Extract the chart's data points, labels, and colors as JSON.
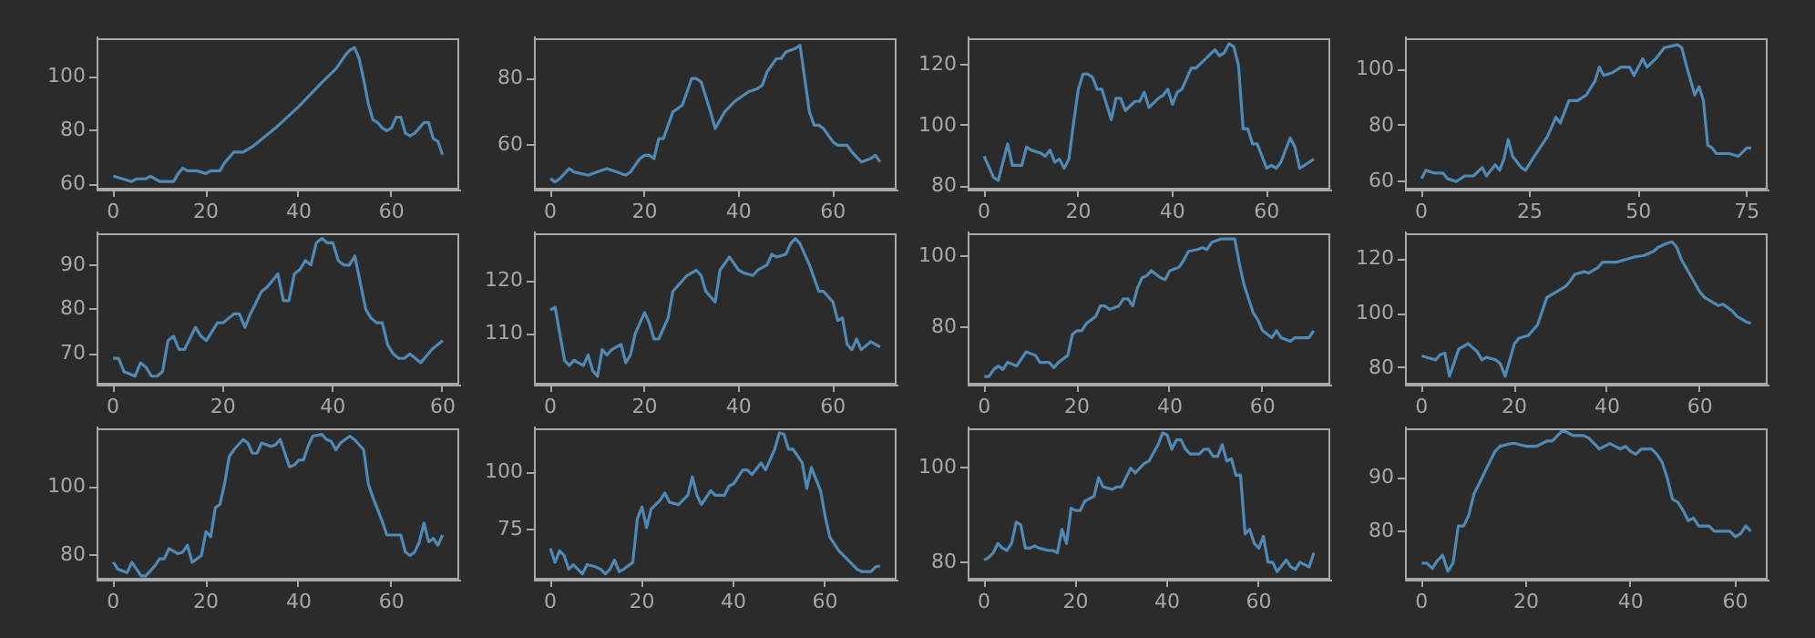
{
  "chart_data": [
    {
      "type": "line",
      "color": "#4f89b5",
      "xlim": [
        -3.6,
        74.6
      ],
      "ylim": [
        58,
        114.7
      ],
      "xticks": [
        0,
        20,
        40,
        60
      ],
      "yticks": [
        60,
        80,
        100
      ],
      "x": [
        0,
        2,
        4,
        5,
        7,
        8,
        9,
        10,
        12,
        13,
        14,
        15,
        16,
        18,
        20,
        21,
        23,
        24,
        25,
        26,
        28,
        30,
        35,
        40,
        45,
        48,
        50,
        51,
        52,
        53,
        54,
        55,
        56,
        57,
        58,
        59,
        60,
        61,
        62,
        63,
        64,
        65,
        66,
        67,
        68,
        69,
        70,
        71
      ],
      "values": [
        63,
        62,
        61,
        62,
        62,
        63,
        62,
        61,
        61,
        61,
        64,
        66,
        65,
        65,
        64,
        65,
        65,
        68,
        70,
        72,
        72,
        74,
        81,
        89,
        98,
        103,
        108,
        110,
        111,
        107,
        99,
        90,
        84,
        83,
        81,
        80,
        81,
        85,
        85,
        79,
        78,
        79,
        81,
        83,
        83,
        77,
        76,
        71
      ]
    },
    {
      "type": "line",
      "color": "#4f89b5",
      "xlim": [
        -3.5,
        73.5
      ],
      "ylim": [
        46.7,
        92.3
      ],
      "xticks": [
        0,
        20,
        40,
        60
      ],
      "yticks": [
        60,
        80
      ],
      "x": [
        0,
        1,
        2,
        4,
        5,
        8,
        10,
        12,
        14,
        16,
        17,
        19,
        20,
        21,
        22,
        23,
        24,
        25,
        26,
        28,
        30,
        31,
        32,
        34,
        35,
        37,
        39,
        41,
        42,
        44,
        45,
        46,
        48,
        49,
        50,
        52,
        53,
        54,
        55,
        56,
        57,
        58,
        60,
        61,
        63,
        64,
        66,
        68,
        69,
        70
      ],
      "values": [
        50,
        49,
        50,
        53,
        52,
        51,
        52,
        53,
        52,
        51,
        52,
        56,
        57,
        57,
        56,
        62,
        62,
        66,
        70,
        72,
        80,
        80,
        79,
        70,
        65,
        70,
        73,
        75,
        76,
        77,
        78,
        82,
        86,
        86,
        88,
        89,
        90,
        80,
        70,
        66,
        66,
        65,
        61,
        60,
        60,
        58,
        55,
        56,
        57,
        55
      ]
    },
    {
      "type": "line",
      "color": "#4f89b5",
      "xlim": [
        -3.5,
        73.5
      ],
      "ylim": [
        79,
        129
      ],
      "xticks": [
        0,
        20,
        40,
        60
      ],
      "yticks": [
        80,
        100,
        120
      ],
      "x": [
        0,
        2,
        3,
        5,
        6,
        8,
        9,
        10,
        12,
        13,
        14,
        15,
        16,
        17,
        18,
        19,
        20,
        21,
        22,
        23,
        24,
        25,
        27,
        28,
        29,
        30,
        32,
        33,
        34,
        35,
        37,
        38,
        39,
        40,
        41,
        42,
        44,
        45,
        47,
        49,
        50,
        51,
        52,
        53,
        54,
        55,
        56,
        57,
        58,
        60,
        61,
        62,
        63,
        65,
        66,
        67,
        69,
        70
      ],
      "values": [
        90,
        83,
        82,
        94,
        87,
        87,
        93,
        92,
        91,
        90,
        92,
        88,
        89,
        86,
        89,
        101,
        112,
        117,
        117,
        116,
        112,
        112,
        102,
        109,
        109,
        105,
        108,
        108,
        111,
        106,
        109,
        110,
        112,
        107,
        111,
        112,
        119,
        119,
        122,
        125,
        123,
        124,
        127,
        126,
        120,
        99,
        99,
        94,
        94,
        86,
        87,
        86,
        88,
        96,
        93,
        86,
        88,
        89
      ]
    },
    {
      "type": "line",
      "color": "#4f89b5",
      "xlim": [
        -3.8,
        79.8
      ],
      "ylim": [
        57.1,
        111.6
      ],
      "xticks": [
        0,
        25,
        50,
        75
      ],
      "yticks": [
        60,
        80,
        100
      ],
      "x": [
        0,
        1,
        3,
        5,
        6,
        8,
        10,
        12,
        14,
        15,
        17,
        18,
        19,
        20,
        21,
        23,
        24,
        26,
        29,
        31,
        32,
        34,
        36,
        38,
        40,
        41,
        42,
        44,
        46,
        48,
        49,
        51,
        52,
        54,
        56,
        59,
        60,
        61,
        63,
        64,
        65,
        66,
        67,
        68,
        71,
        73,
        75,
        76
      ],
      "values": [
        61,
        64,
        63,
        63,
        61,
        60,
        62,
        62,
        65,
        62,
        66,
        64,
        68,
        75,
        69,
        65,
        64,
        69,
        76,
        83,
        81,
        89,
        89,
        91,
        96,
        101,
        98,
        99,
        101,
        101,
        98,
        104,
        101,
        104,
        108,
        109,
        108,
        102,
        91,
        94,
        89,
        73,
        72,
        70,
        70,
        69,
        72,
        72
      ]
    },
    {
      "type": "line",
      "color": "#4f89b5",
      "xlim": [
        -3,
        63
      ],
      "ylim": [
        63.1,
        97.3
      ],
      "xticks": [
        0,
        20,
        40,
        60
      ],
      "yticks": [
        70,
        80,
        90
      ],
      "x": [
        0,
        1,
        2,
        4,
        5,
        6,
        7,
        8,
        9,
        10,
        11,
        12,
        13,
        15,
        16,
        17,
        19,
        20,
        22,
        23,
        24,
        25,
        27,
        28,
        30,
        31,
        32,
        33,
        34,
        35,
        36,
        37,
        38,
        39,
        40,
        41,
        42,
        43,
        44,
        45,
        46,
        47,
        48,
        49,
        50,
        51,
        52,
        53,
        54,
        56,
        58,
        60
      ],
      "values": [
        69,
        69,
        66,
        65,
        68,
        67,
        65,
        65,
        66,
        73,
        74,
        71,
        71,
        76,
        74,
        73,
        77,
        77,
        79,
        79,
        76,
        79,
        84,
        85,
        88,
        82,
        82,
        88,
        89,
        91,
        90,
        95,
        96,
        95,
        95,
        91,
        90,
        90,
        92,
        86,
        80,
        78,
        77,
        77,
        72,
        70,
        69,
        69,
        70,
        68,
        71,
        73
      ]
    },
    {
      "type": "line",
      "color": "#4f89b5",
      "xlim": [
        -3.5,
        73.5
      ],
      "ylim": [
        100.4,
        129.1
      ],
      "xticks": [
        0,
        20,
        40,
        60
      ],
      "yticks": [
        110,
        120
      ],
      "x": [
        0,
        1,
        2,
        3,
        4,
        5,
        7,
        8,
        9,
        10,
        11,
        12,
        13,
        15,
        16,
        17,
        18,
        20,
        21,
        22,
        23,
        25,
        26,
        28,
        29,
        31,
        32,
        33,
        35,
        36,
        38,
        40,
        41,
        43,
        44,
        46,
        47,
        48,
        50,
        51,
        52,
        53,
        55,
        57,
        58,
        60,
        61,
        62,
        63,
        64,
        65,
        66,
        68,
        70
      ],
      "values": [
        114.5,
        115,
        110,
        105,
        104,
        105,
        104,
        106,
        103,
        102,
        107,
        106,
        107,
        108,
        104.5,
        106,
        110,
        114,
        112,
        109,
        109,
        113,
        118,
        120,
        121,
        122,
        121,
        118,
        116,
        122,
        124.5,
        122,
        121.5,
        121,
        122,
        123,
        125,
        124.5,
        125,
        127,
        128,
        127,
        123,
        118,
        118,
        116,
        112.5,
        113,
        108,
        107,
        109,
        107,
        108.5,
        107.5
      ]
    },
    {
      "type": "line",
      "color": "#4f89b5",
      "xlim": [
        -3.6,
        74.6
      ],
      "ylim": [
        63.7,
        106.8
      ],
      "xticks": [
        0,
        20,
        40,
        60
      ],
      "yticks": [
        80,
        100
      ],
      "x": [
        0,
        1,
        2,
        3,
        4,
        5,
        7,
        8,
        9,
        11,
        12,
        14,
        15,
        16,
        18,
        19,
        20,
        21,
        22,
        24,
        25,
        26,
        27,
        29,
        30,
        31,
        32,
        33,
        34,
        35,
        36,
        38,
        39,
        40,
        42,
        43,
        44,
        46,
        47,
        48,
        49,
        51,
        52,
        54,
        55,
        56,
        58,
        59,
        60,
        62,
        63,
        64,
        66,
        67,
        68,
        70,
        71
      ],
      "values": [
        66,
        66,
        68,
        69,
        68,
        70,
        69,
        71,
        73,
        72,
        70,
        70,
        68.5,
        70,
        72,
        78,
        79,
        79,
        81,
        83,
        86,
        86,
        85,
        86,
        88,
        88,
        86,
        91,
        94,
        94.5,
        96,
        94,
        93.5,
        96,
        97,
        99,
        101.5,
        102,
        102.5,
        102,
        104,
        105,
        105,
        105,
        98,
        92,
        84,
        82,
        79,
        77,
        79,
        77,
        76,
        77,
        77,
        77,
        79
      ]
    },
    {
      "type": "line",
      "color": "#4f89b5",
      "xlim": [
        -3.6,
        74.6
      ],
      "ylim": [
        73.9,
        129.9
      ],
      "xticks": [
        0,
        20,
        40,
        60
      ],
      "yticks": [
        80,
        100,
        120
      ],
      "x": [
        0,
        1,
        3,
        4,
        5,
        6,
        7,
        8,
        10,
        12,
        13,
        14,
        16,
        17,
        18,
        19,
        20,
        21,
        23,
        25,
        26,
        27,
        29,
        31,
        32,
        33,
        35,
        36,
        38,
        39,
        41,
        42,
        44,
        46,
        48,
        50,
        51,
        53,
        54,
        55,
        56,
        58,
        60,
        61,
        63,
        64,
        65,
        67,
        68,
        70,
        71
      ],
      "values": [
        84.5,
        84,
        83,
        85,
        85.5,
        77,
        82,
        87,
        89,
        86,
        83,
        84,
        83,
        81.5,
        77,
        83,
        89,
        91,
        92,
        96,
        101,
        106,
        108,
        110,
        112,
        114.5,
        115.5,
        115,
        117,
        119,
        119,
        119,
        120,
        121,
        121.5,
        123,
        124.5,
        126,
        126.5,
        124.5,
        120,
        114,
        108,
        106,
        104,
        103,
        103.5,
        101,
        99,
        97,
        96.5
      ]
    },
    {
      "type": "line",
      "color": "#4f89b5",
      "xlim": [
        -3.6,
        74.6
      ],
      "ylim": [
        72.9,
        117.5
      ],
      "xticks": [
        0,
        20,
        40,
        60
      ],
      "yticks": [
        80,
        100
      ],
      "x": [
        0,
        1,
        3,
        4,
        5,
        6,
        7,
        9,
        10,
        11,
        12,
        14,
        15,
        16,
        17,
        18,
        19,
        20,
        21,
        22,
        23,
        24,
        25,
        26,
        28,
        29,
        30,
        31,
        32,
        34,
        35,
        36,
        38,
        39,
        40,
        41,
        42,
        43,
        45,
        46,
        47,
        48,
        49,
        51,
        52,
        54,
        55,
        56,
        58,
        59,
        60,
        62,
        63,
        64,
        65,
        66,
        67,
        68,
        69,
        70,
        71
      ],
      "values": [
        78,
        76,
        75,
        78,
        76,
        74,
        74,
        77,
        79,
        79,
        82,
        80.5,
        81,
        83,
        78,
        79,
        80,
        87,
        85.5,
        94,
        95,
        101,
        109,
        111,
        114,
        113,
        110,
        110,
        113,
        112,
        112.5,
        114,
        106,
        106.5,
        108,
        108,
        112,
        115,
        115.5,
        114,
        113.5,
        111,
        113,
        115,
        114,
        111,
        101,
        97,
        90,
        86,
        86,
        86,
        81,
        80,
        81,
        84,
        89.5,
        84,
        85,
        83,
        86
      ]
    },
    {
      "type": "line",
      "color": "#4f89b5",
      "xlim": [
        -3.6,
        75.6
      ],
      "ylim": [
        53.5,
        119.3
      ],
      "xticks": [
        0,
        20,
        40,
        60
      ],
      "yticks": [
        75,
        100
      ],
      "x": [
        0,
        1,
        2,
        3,
        4,
        5,
        7,
        8,
        10,
        11,
        12,
        13,
        14,
        15,
        16,
        18,
        19,
        20,
        21,
        22,
        24,
        25,
        26,
        28,
        30,
        31,
        32,
        33,
        35,
        36,
        38,
        39,
        40,
        42,
        43,
        44,
        46,
        47,
        49,
        50,
        51,
        52,
        53,
        55,
        56,
        57,
        59,
        60,
        61,
        63,
        65,
        67,
        68,
        70,
        71,
        72
      ],
      "values": [
        67,
        61,
        66,
        64,
        58,
        60,
        56,
        60,
        59,
        58,
        56,
        58,
        62,
        57,
        58,
        61,
        80,
        85,
        76,
        84,
        88,
        91,
        87,
        86,
        90,
        98,
        90,
        86,
        92,
        90,
        90,
        94,
        95,
        101,
        101,
        99,
        104,
        101,
        110,
        117,
        116.5,
        110,
        110,
        104,
        93,
        102,
        92,
        81,
        72,
        66,
        62,
        58,
        57,
        57,
        59,
        59.5
      ]
    },
    {
      "type": "line",
      "color": "#4f89b5",
      "xlim": [
        -3.6,
        75.6
      ],
      "ylim": [
        76.3,
        108.6
      ],
      "xticks": [
        0,
        20,
        40,
        60
      ],
      "yticks": [
        80,
        100
      ],
      "x": [
        0,
        1,
        2,
        3,
        4,
        5,
        6,
        7,
        8,
        9,
        10,
        11,
        12,
        14,
        15,
        16,
        17,
        18,
        19,
        20,
        21,
        22,
        24,
        25,
        26,
        28,
        29,
        30,
        31,
        32,
        33,
        34,
        35,
        36,
        38,
        39,
        40,
        41,
        42,
        43,
        44,
        45,
        47,
        48,
        49,
        50,
        51,
        52,
        53,
        54,
        55,
        56,
        57,
        58,
        59,
        60,
        61,
        62,
        63,
        64,
        66,
        67,
        68,
        69,
        71,
        72
      ],
      "values": [
        80.5,
        81,
        82,
        84,
        83,
        82.5,
        84,
        88.5,
        88,
        83,
        83,
        83.5,
        83,
        82.5,
        82.5,
        82,
        87,
        84,
        91.5,
        91,
        91,
        93,
        94,
        98,
        96,
        95.5,
        96,
        96,
        98,
        100,
        99,
        100,
        101,
        101.5,
        105,
        107.5,
        107,
        104,
        106,
        106,
        104,
        103,
        103,
        104,
        104,
        102.5,
        102.5,
        105,
        101.5,
        102,
        98.5,
        98.5,
        86,
        87,
        84,
        83,
        85.5,
        80,
        80,
        78,
        80.5,
        79,
        78.5,
        80,
        79,
        82
      ]
    },
    {
      "type": "line",
      "color": "#4f89b5",
      "xlim": [
        -3.2,
        66.2
      ],
      "ylim": [
        70.9,
        99.5
      ],
      "xticks": [
        0,
        20,
        40,
        60
      ],
      "yticks": [
        80,
        90
      ],
      "x": [
        0,
        1,
        2,
        3,
        4,
        5,
        6,
        7,
        8,
        9,
        10,
        11,
        13,
        14,
        15,
        17,
        18,
        20,
        21,
        22,
        24,
        25,
        26,
        27,
        28,
        29,
        31,
        32,
        33,
        34,
        35,
        36,
        37,
        38,
        39,
        40,
        41,
        42,
        43,
        44,
        45,
        46,
        47,
        48,
        49,
        50,
        51,
        52,
        53,
        55,
        56,
        57,
        59,
        60,
        61,
        62,
        63
      ],
      "values": [
        74,
        74,
        73,
        74.5,
        75.5,
        72.5,
        74,
        81,
        81,
        83,
        87,
        89,
        93,
        95,
        96,
        96.5,
        96.5,
        96,
        96,
        96,
        97,
        97,
        98,
        99,
        98.5,
        98,
        98,
        97.5,
        96.5,
        95.5,
        96,
        96.5,
        96,
        95.5,
        96,
        95,
        94.5,
        95.5,
        95.5,
        95.5,
        94.5,
        93,
        90,
        86,
        85.5,
        84,
        82,
        82.5,
        81,
        81,
        80,
        80,
        80,
        79,
        79.5,
        81,
        80
      ]
    }
  ]
}
